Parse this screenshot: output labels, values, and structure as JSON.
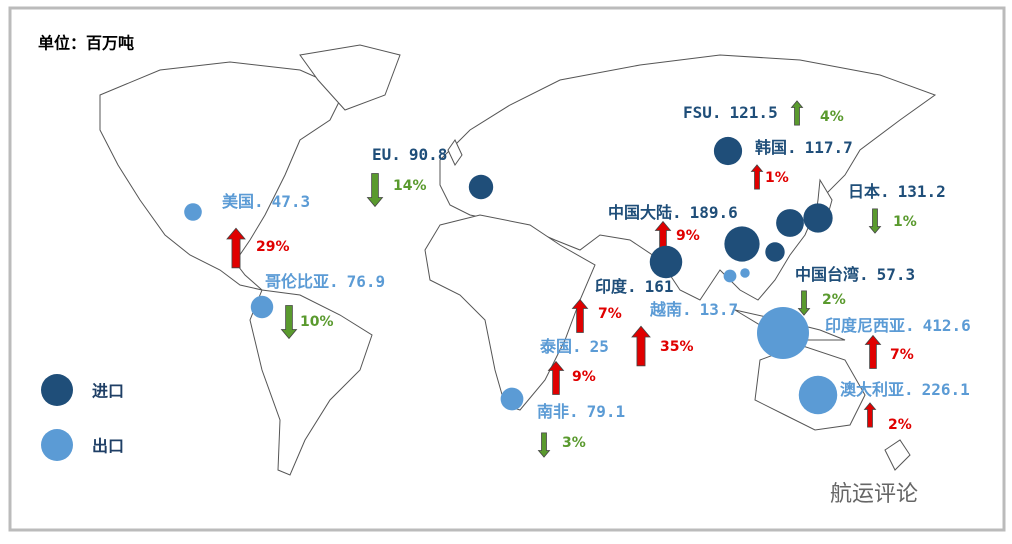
{
  "unit": "单位：百万吨",
  "legend": [
    {
      "label": "进口",
      "color": "#1f4e79"
    },
    {
      "label": "出口",
      "color": "#5b9bd5"
    }
  ],
  "regions": [
    {
      "name": "FSU.",
      "value": 121.5,
      "type": 0,
      "change": {
        "value": 4,
        "label": "4%"
      },
      "direction": "up",
      "change_color": "#5a9a2e"
    },
    {
      "name": "韩国.",
      "value": 117.7,
      "type": 0,
      "change": {
        "value": 1,
        "label": "1%"
      },
      "direction": "up",
      "change_color": "#e00000"
    },
    {
      "name": "日本.",
      "value": 131.2,
      "type": 0,
      "change": {
        "value": 1,
        "label": "1%"
      },
      "direction": "down",
      "change_color": "#5a9a2e"
    },
    {
      "name": "中国大陆.",
      "value": 189.6,
      "type": 0,
      "change": {
        "value": 9,
        "label": "9%"
      },
      "direction": "up",
      "change_color": "#e00000"
    },
    {
      "name": "中国台湾.",
      "value": 57.3,
      "type": 0,
      "change": {
        "value": 2,
        "label": "2%"
      },
      "direction": "down",
      "change_color": "#5a9a2e"
    },
    {
      "name": "印度.",
      "value": 161,
      "type": 0,
      "change": {
        "value": 7,
        "label": "7%"
      },
      "direction": "up",
      "change_color": "#e00000"
    },
    {
      "name": "越南.",
      "value": 13.7,
      "type": 1,
      "change": {
        "value": 35,
        "label": "35%"
      },
      "direction": "up",
      "change_color": "#e00000"
    },
    {
      "name": "泰国.",
      "value": 25,
      "type": 1,
      "change": {
        "value": 9,
        "label": "9%"
      },
      "direction": "up",
      "change_color": "#e00000"
    },
    {
      "name": "印度尼西亚.",
      "value": 412.6,
      "type": 1,
      "change": {
        "value": 7,
        "label": "7%"
      },
      "direction": "up",
      "change_color": "#e00000"
    },
    {
      "name": "澳大利亚.",
      "value": 226.1,
      "type": 1,
      "change": {
        "value": 2,
        "label": "2%"
      },
      "direction": "up",
      "change_color": "#e00000"
    },
    {
      "name": "美国.",
      "value": 47.3,
      "type": 1,
      "change": {
        "value": 29,
        "label": "29%"
      },
      "direction": "up",
      "change_color": "#e00000"
    },
    {
      "name": "哥伦比亚.",
      "value": 76.9,
      "type": 1,
      "change": {
        "value": 10,
        "label": "10%"
      },
      "direction": "down",
      "change_color": "#5a9a2e"
    },
    {
      "name": "EU.",
      "value": 90.8,
      "type": 0,
      "change": {
        "value": 14,
        "label": "14%"
      },
      "direction": "down",
      "change_color": "#5a9a2e"
    },
    {
      "name": "南非.",
      "value": 79.1,
      "type": 1,
      "change": {
        "value": 3,
        "label": "3%"
      },
      "direction": "down",
      "change_color": "#5a9a2e"
    }
  ],
  "watermark": "航运评论"
}
